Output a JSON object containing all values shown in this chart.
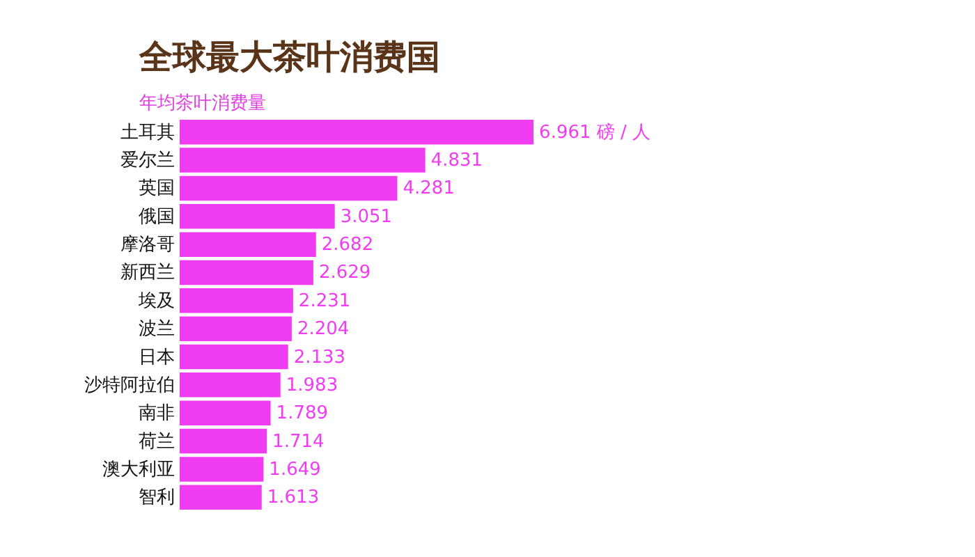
{
  "chart_data": {
    "type": "bar",
    "orientation": "horizontal",
    "title": "全球最大茶叶消费国",
    "subtitle": "年均茶叶消费量",
    "categories": [
      "土耳其",
      "爱尔兰",
      "英国",
      "俄国",
      "摩洛哥",
      "新西兰",
      "埃及",
      "波兰",
      "日本",
      "沙特阿拉伯",
      "南非",
      "荷兰",
      "澳大利亚",
      "智利"
    ],
    "values": [
      6.961,
      4.831,
      4.281,
      3.051,
      2.682,
      2.629,
      2.231,
      2.204,
      2.133,
      1.983,
      1.789,
      1.714,
      1.649,
      1.613
    ],
    "value_labels": [
      "6.961 磅 / 人",
      "4.831",
      "4.281",
      "3.051",
      "2.682",
      "2.629",
      "2.231",
      "2.204",
      "2.133",
      "1.983",
      "1.789",
      "1.714",
      "1.649",
      "1.613"
    ],
    "color": "#f03cf0",
    "grid": false
  }
}
